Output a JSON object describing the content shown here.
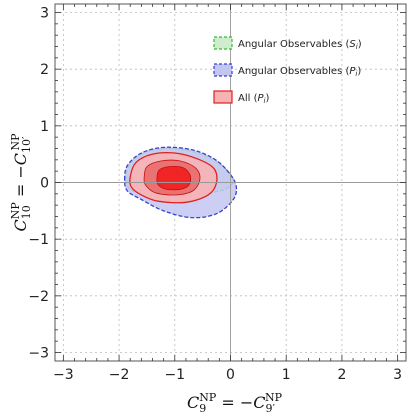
{
  "chart_data": {
    "type": "area",
    "title": "",
    "xlabel": "C9NP = −C9′NP",
    "ylabel": "C10NP = −C10′NP",
    "xlabel_parts": {
      "sym_left": "C",
      "sub_left": "9",
      "sup_left": "NP",
      "eq": " = −",
      "sym_right": "C",
      "sub_right": "9′",
      "sup_right": "NP"
    },
    "ylabel_parts": {
      "sym_left": "C",
      "sub_left": "10",
      "sup_left": "NP",
      "eq": " = −",
      "sym_right": "C",
      "sub_right": "10′",
      "sup_right": "NP"
    },
    "xlim": [
      -3.15,
      3.15
    ],
    "ylim": [
      -3.15,
      3.15
    ],
    "x_ticks": [
      -3,
      -2,
      -1,
      0,
      1,
      2,
      3
    ],
    "y_ticks": [
      -3,
      -2,
      -1,
      0,
      1,
      2,
      3
    ],
    "x_tick_labels": [
      "−3",
      "−2",
      "−1",
      "0",
      "1",
      "2",
      "3"
    ],
    "y_tick_labels": [
      "−3",
      "−2",
      "−1",
      "0",
      "1",
      "2",
      "3"
    ],
    "grid": true,
    "legend_position": "top-right",
    "series": [
      {
        "name": "Angular Observables (S_i)",
        "legend_main": "Angular Observables (",
        "legend_var": "S",
        "legend_sub": "i",
        "legend_end": ")",
        "color": "#33bb33",
        "fill": "#cfeccf",
        "dash": true,
        "contour": [
          [
            -1.88,
            0.05
          ],
          [
            -1.82,
            0.3
          ],
          [
            -1.6,
            0.5
          ],
          [
            -1.2,
            0.6
          ],
          [
            -0.7,
            0.55
          ],
          [
            -0.3,
            0.4
          ],
          [
            -0.05,
            0.2
          ],
          [
            0.05,
            0.02
          ],
          [
            -0.1,
            -0.12
          ],
          [
            -0.5,
            -0.2
          ],
          [
            -1.0,
            -0.25
          ],
          [
            -1.5,
            -0.22
          ],
          [
            -1.8,
            -0.12
          ]
        ]
      },
      {
        "name": "Angular Observables (P_i)",
        "legend_main": "Angular Observables (",
        "legend_var": "P",
        "legend_sub": "i",
        "legend_end": ")",
        "color": "#3344cc",
        "fill": "#c4c6f2",
        "dash": true,
        "contour": [
          [
            -1.9,
            0.05
          ],
          [
            -1.85,
            0.3
          ],
          [
            -1.6,
            0.52
          ],
          [
            -1.2,
            0.62
          ],
          [
            -0.7,
            0.58
          ],
          [
            -0.3,
            0.42
          ],
          [
            -0.05,
            0.2
          ],
          [
            0.1,
            -0.05
          ],
          [
            0.05,
            -0.3
          ],
          [
            -0.25,
            -0.55
          ],
          [
            -0.7,
            -0.62
          ],
          [
            -1.2,
            -0.5
          ],
          [
            -1.6,
            -0.3
          ],
          [
            -1.85,
            -0.15
          ]
        ]
      },
      {
        "name": "All (P_i)",
        "legend_main": "All (",
        "legend_var": "P",
        "legend_sub": "i",
        "legend_end": ")",
        "color": "#e02020",
        "fill": "#f7b3b3",
        "dash": false,
        "contour": [
          [
            -1.8,
            0.1
          ],
          [
            -1.7,
            0.35
          ],
          [
            -1.4,
            0.5
          ],
          [
            -1.0,
            0.52
          ],
          [
            -0.6,
            0.42
          ],
          [
            -0.3,
            0.25
          ],
          [
            -0.25,
            0.0
          ],
          [
            -0.4,
            -0.22
          ],
          [
            -0.8,
            -0.35
          ],
          [
            -1.3,
            -0.33
          ],
          [
            -1.6,
            -0.22
          ],
          [
            -1.78,
            -0.08
          ]
        ]
      }
    ],
    "inner_regions": [
      {
        "level": "2 sigma",
        "color": "#e43a3a",
        "contour": [
          [
            -1.55,
            0.08
          ],
          [
            -1.5,
            0.28
          ],
          [
            -1.25,
            0.38
          ],
          [
            -0.9,
            0.38
          ],
          [
            -0.62,
            0.25
          ],
          [
            -0.55,
            0.05
          ],
          [
            -0.68,
            -0.15
          ],
          [
            -1.0,
            -0.22
          ],
          [
            -1.35,
            -0.18
          ],
          [
            -1.52,
            -0.05
          ]
        ]
      },
      {
        "level": "1 sigma",
        "color": "#f21818",
        "contour": [
          [
            -1.32,
            0.08
          ],
          [
            -1.28,
            0.22
          ],
          [
            -1.1,
            0.28
          ],
          [
            -0.85,
            0.26
          ],
          [
            -0.72,
            0.12
          ],
          [
            -0.75,
            -0.05
          ],
          [
            -0.9,
            -0.12
          ],
          [
            -1.15,
            -0.12
          ],
          [
            -1.3,
            -0.04
          ]
        ]
      }
    ]
  }
}
